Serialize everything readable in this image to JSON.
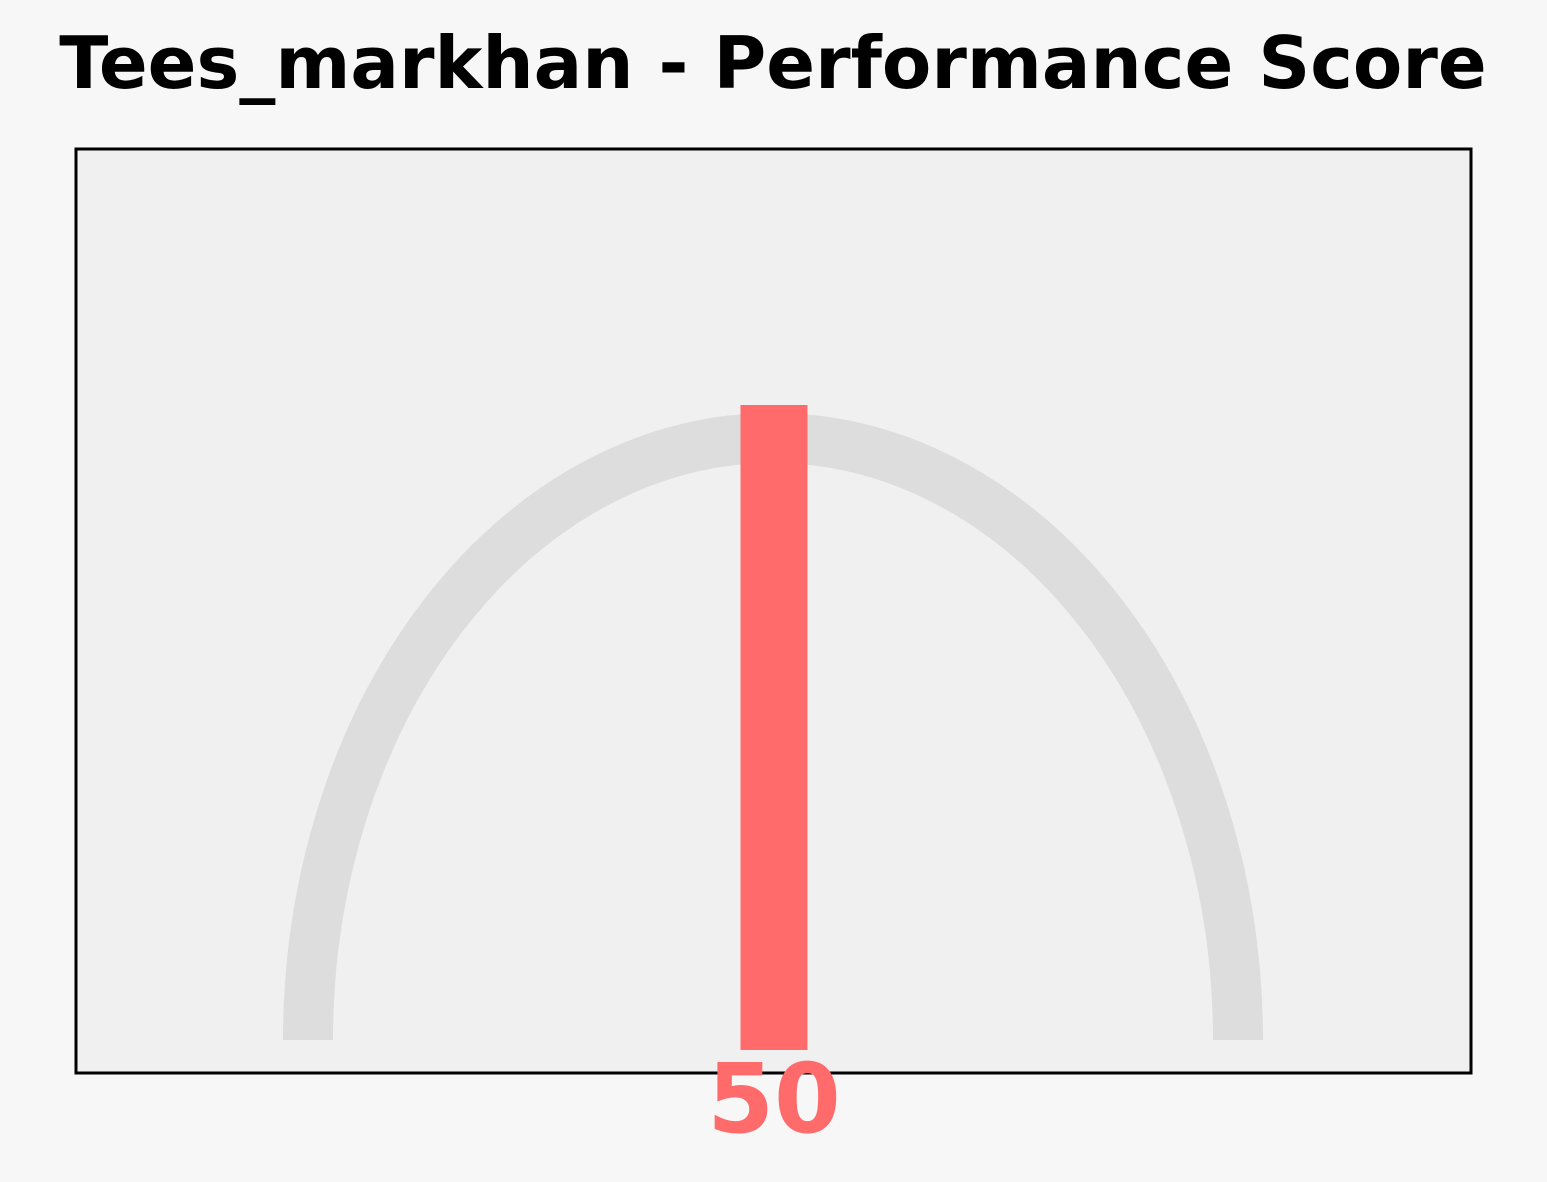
{
  "chart_data": {
    "type": "gauge",
    "title": "Tees_markhan - Performance Score",
    "value": 50,
    "value_label": "50",
    "range": [
      0,
      100
    ],
    "colors": {
      "background": "#f7f7f7",
      "plot_background": "#f0f0f0",
      "arc": "#dddddd",
      "needle": "#ff6b6b",
      "value_label": "#ff6b6b",
      "frame": "#000000"
    }
  }
}
